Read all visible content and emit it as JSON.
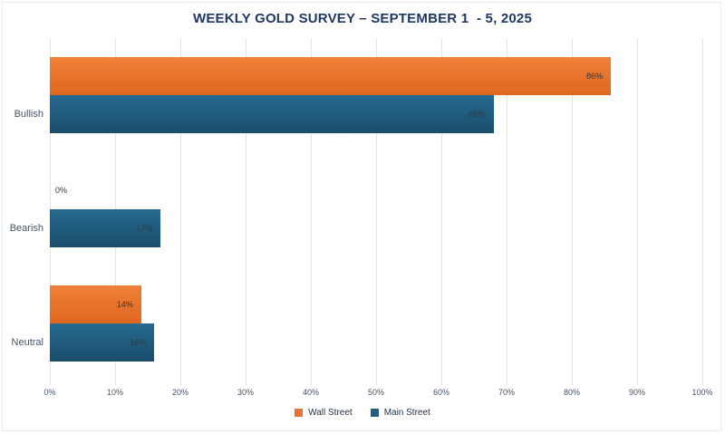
{
  "title": "WEEKLY GOLD SURVEY – SEPTEMBER 1  - 5, 2025",
  "colors": {
    "wall_street": "#E97132",
    "main_street": "#21607F",
    "title_text": "#1F3864",
    "axis_text": "#44546A",
    "gridline": "#DCE6EF"
  },
  "chart_data": {
    "type": "bar",
    "orientation": "horizontal",
    "title": "WEEKLY GOLD SURVEY – SEPTEMBER 1  - 5, 2025",
    "categories": [
      "Bullish",
      "Bearish",
      "Neutral"
    ],
    "series": [
      {
        "name": "Wall Street",
        "color": "#E97132",
        "values": [
          86,
          0,
          14
        ],
        "data_labels": [
          "86%",
          "0%",
          "14%"
        ]
      },
      {
        "name": "Main Street",
        "color": "#21607F",
        "values": [
          68,
          17,
          16
        ],
        "data_labels": [
          "68%",
          "17%",
          "16%"
        ]
      }
    ],
    "xlabel": "",
    "ylabel": "",
    "xlim": [
      0,
      100
    ],
    "x_ticks": [
      "0%",
      "10%",
      "20%",
      "30%",
      "40%",
      "50%",
      "60%",
      "70%",
      "80%",
      "90%",
      "100%"
    ],
    "grid": "vertical",
    "legend_position": "bottom"
  },
  "legend": {
    "items": [
      {
        "label": "Wall Street"
      },
      {
        "label": "Main Street"
      }
    ]
  }
}
